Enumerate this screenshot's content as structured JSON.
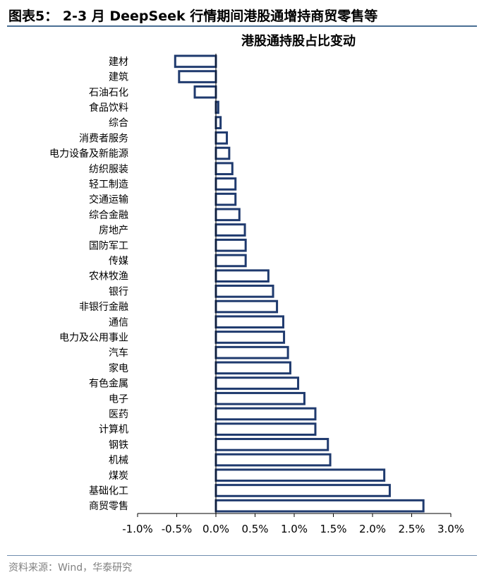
{
  "figure": {
    "title": "图表5： 2-3 月 DeepSeek 行情期间港股通增持商贸零售等"
  },
  "chart_data": {
    "type": "bar",
    "orientation": "horizontal",
    "title": "港股通持股占比变动",
    "xlabel": "",
    "ylabel": "",
    "xlim": [
      -0.01,
      0.03
    ],
    "x_ticks": [
      -0.01,
      -0.005,
      0,
      0.005,
      0.01,
      0.015,
      0.02,
      0.025,
      0.03
    ],
    "x_tick_labels": [
      "-1.0%",
      "-0.5%",
      "0.0%",
      "0.5%",
      "1.0%",
      "1.5%",
      "2.0%",
      "2.5%",
      "3.0%"
    ],
    "grid": false,
    "legend": false,
    "bar_style": {
      "fill": "#ffffff",
      "stroke": "#1f3a6e"
    },
    "categories": [
      "建材",
      "建筑",
      "石油石化",
      "食品饮料",
      "综合",
      "消费者服务",
      "电力设备及新能源",
      "纺织服装",
      "轻工制造",
      "交通运输",
      "综合金融",
      "房地产",
      "国防军工",
      "传媒",
      "农林牧渔",
      "银行",
      "非银行金融",
      "通信",
      "电力及公用事业",
      "汽车",
      "家电",
      "有色金属",
      "电子",
      "医药",
      "计算机",
      "钢铁",
      "机械",
      "煤炭",
      "基础化工",
      "商贸零售"
    ],
    "values": [
      -0.0052,
      -0.0047,
      -0.0027,
      0.0003,
      0.0006,
      0.0014,
      0.0017,
      0.0021,
      0.0025,
      0.0025,
      0.003,
      0.0037,
      0.0038,
      0.0038,
      0.0067,
      0.0073,
      0.0078,
      0.0086,
      0.0087,
      0.0092,
      0.0095,
      0.0105,
      0.0113,
      0.0127,
      0.0127,
      0.0143,
      0.0146,
      0.0215,
      0.0222,
      0.0265
    ]
  },
  "source": {
    "text": "资料来源：Wind，华泰研究"
  }
}
